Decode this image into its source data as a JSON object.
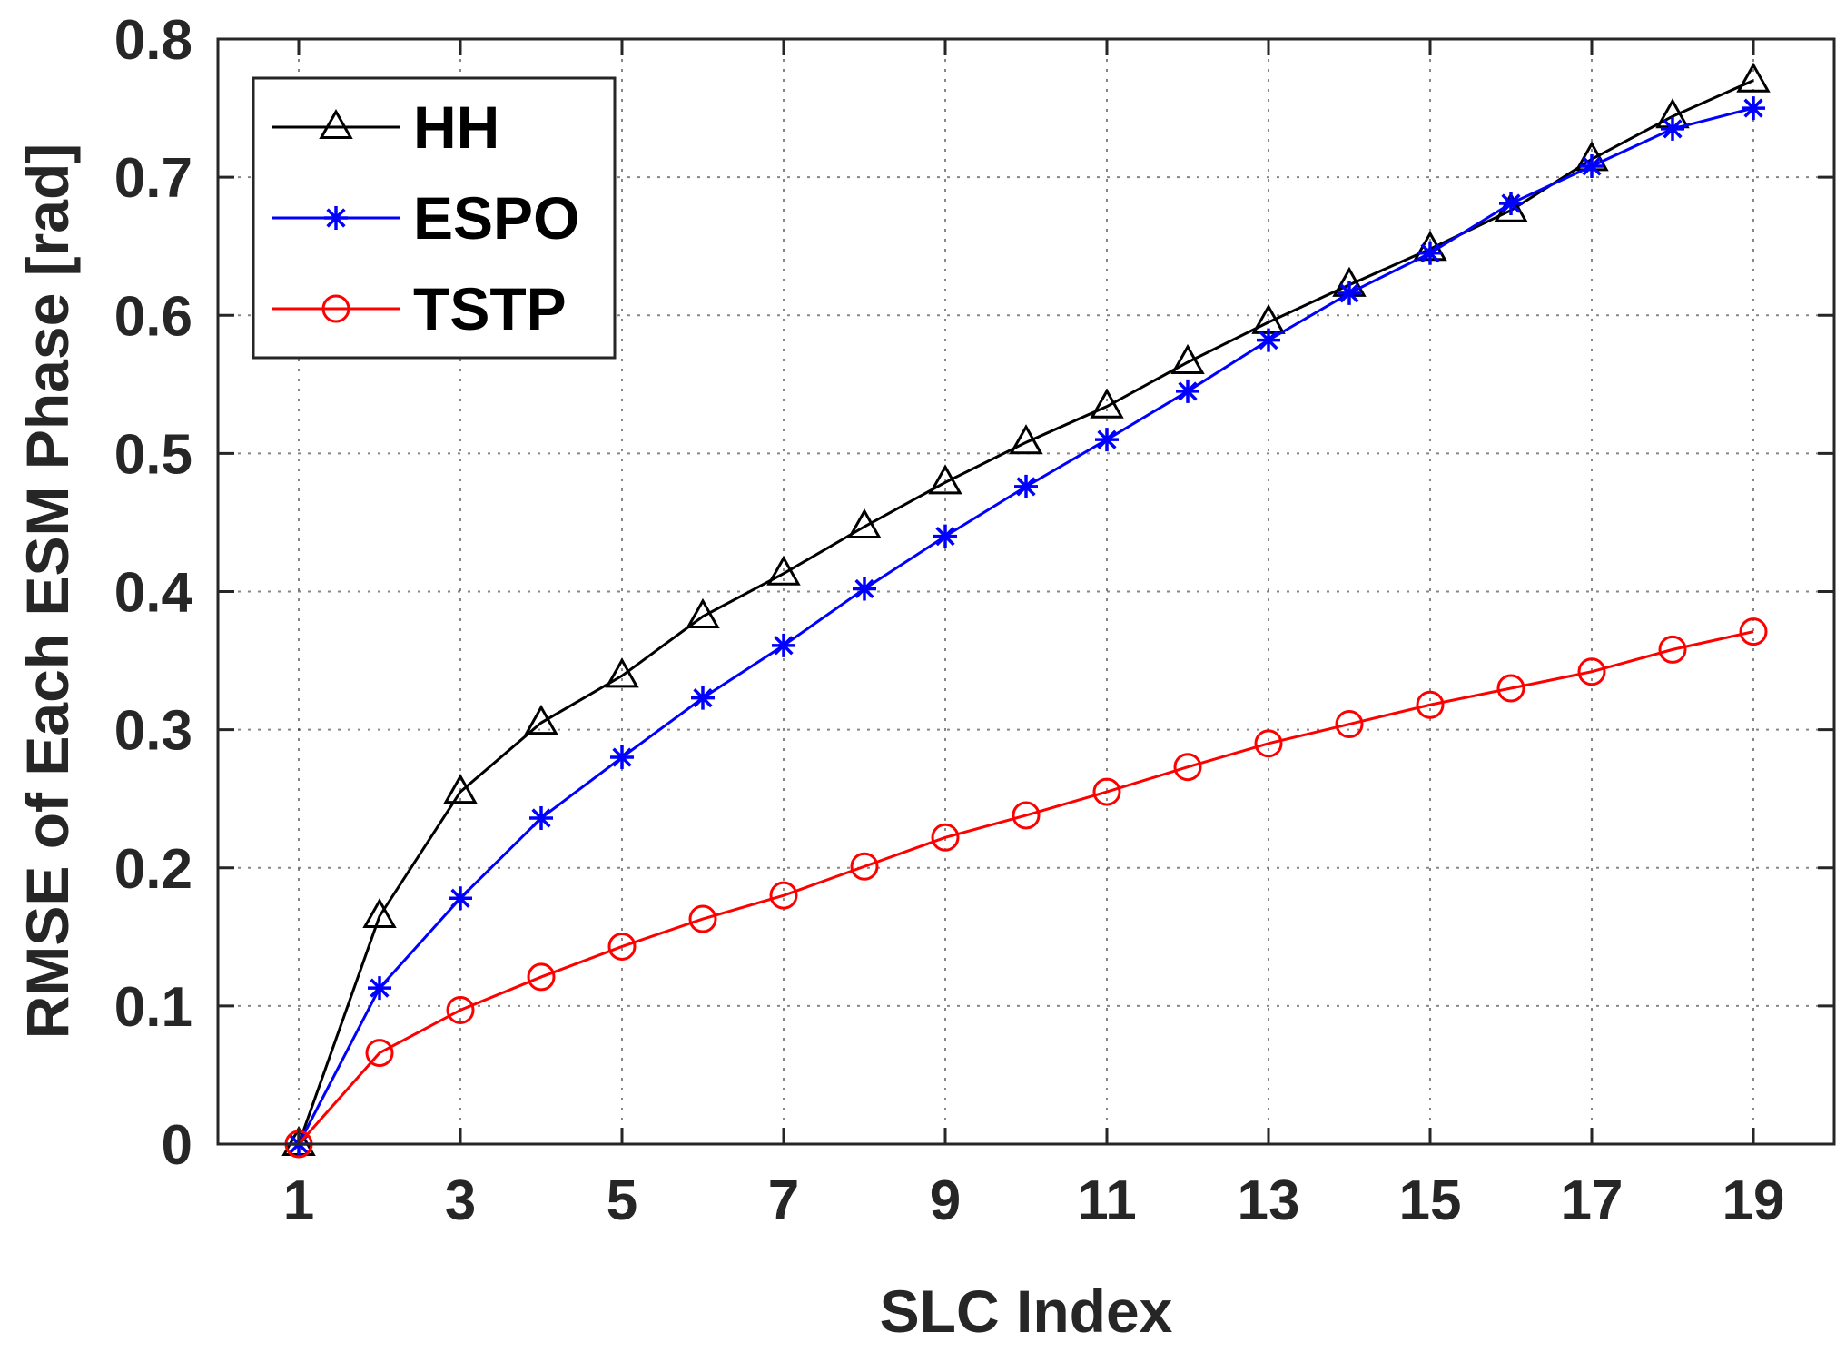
{
  "chart_data": {
    "type": "line",
    "title": "",
    "xlabel": "SLC Index",
    "ylabel": "RMSE of Each ESM Phase [rad]",
    "xlim": [
      0,
      20
    ],
    "ylim": [
      0,
      0.8
    ],
    "xticks": [
      1,
      3,
      5,
      7,
      9,
      11,
      13,
      15,
      17,
      19
    ],
    "xtick_labels": [
      "1",
      "3",
      "5",
      "7",
      "9",
      "11",
      "13",
      "15",
      "17",
      "19"
    ],
    "yticks": [
      0,
      0.1,
      0.2,
      0.3,
      0.4,
      0.5,
      0.6,
      0.7,
      0.8
    ],
    "ytick_labels": [
      "0",
      "0.1",
      "0.2",
      "0.3",
      "0.4",
      "0.5",
      "0.6",
      "0.7",
      "0.8"
    ],
    "grid": true,
    "legend_position": "top-left",
    "x": [
      1,
      2,
      3,
      4,
      5,
      6,
      7,
      8,
      9,
      10,
      11,
      12,
      13,
      14,
      15,
      16,
      17,
      18,
      19
    ],
    "series": [
      {
        "name": "HH",
        "color": "#000000",
        "marker": "triangle",
        "values": [
          0.0,
          0.165,
          0.255,
          0.305,
          0.339,
          0.382,
          0.413,
          0.447,
          0.479,
          0.508,
          0.534,
          0.566,
          0.595,
          0.622,
          0.648,
          0.676,
          0.713,
          0.744,
          0.77
        ]
      },
      {
        "name": "ESPO",
        "color": "#0000ff",
        "marker": "asterisk",
        "values": [
          0.0,
          0.113,
          0.178,
          0.236,
          0.28,
          0.323,
          0.361,
          0.402,
          0.44,
          0.476,
          0.51,
          0.545,
          0.582,
          0.616,
          0.645,
          0.681,
          0.708,
          0.735,
          0.75
        ]
      },
      {
        "name": "TSTP",
        "color": "#ff0000",
        "marker": "circle",
        "values": [
          0.0,
          0.066,
          0.097,
          0.121,
          0.143,
          0.163,
          0.18,
          0.201,
          0.222,
          0.238,
          0.255,
          0.273,
          0.29,
          0.304,
          0.318,
          0.33,
          0.342,
          0.358,
          0.371
        ]
      }
    ]
  }
}
